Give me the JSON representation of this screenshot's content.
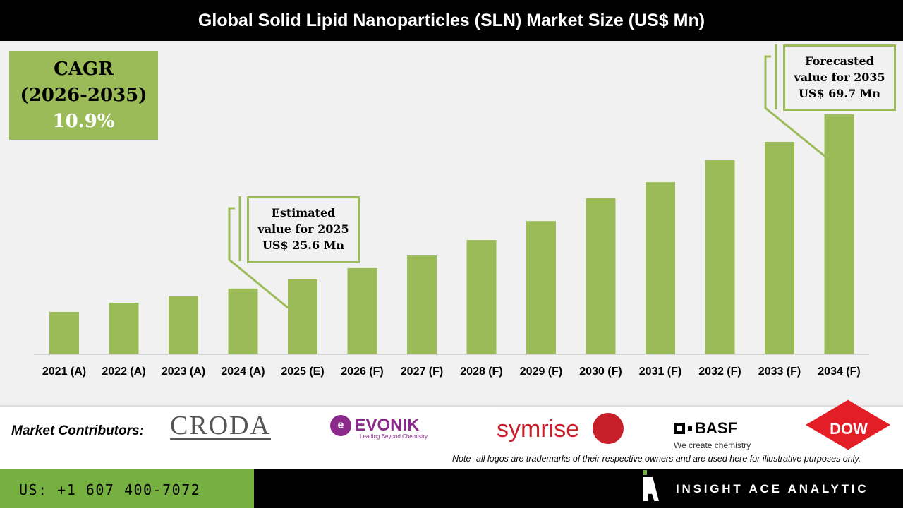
{
  "title": "Global Solid Lipid Nanoparticles (SLN) Market Size (US$ Mn)",
  "cagr": {
    "label": "CAGR",
    "period": "(2026-2035)",
    "value": "10.9%"
  },
  "callout_estimated": {
    "line1": "Estimated",
    "line2": "value for 2025",
    "line3": "US$ 25.6 Mn"
  },
  "callout_forecast": {
    "line1": "Forecasted",
    "line2": "value for 2035",
    "line3": "US$ 69.7 Mn"
  },
  "chart_data": {
    "type": "bar",
    "title": "Global Solid Lipid Nanoparticles (SLN) Market Size (US$ Mn)",
    "categories": [
      "2021 (A)",
      "2022 (A)",
      "2023 (A)",
      "2024 (A)",
      "2025 (E)",
      "2026 (F)",
      "2027 (F)",
      "2028 (F)",
      "2029 (F)",
      "2030 (F)",
      "2031 (F)",
      "2032 (F)",
      "2033 (F)",
      "2034 (F)"
    ],
    "values": [
      14.5,
      17.6,
      19.8,
      22.5,
      25.6,
      29.5,
      33.8,
      39.1,
      45.6,
      53.4,
      58.9,
      66.4,
      72.7,
      82.1
    ],
    "ylim": [
      0,
      85
    ],
    "grid": false,
    "bar_color": "#9bbb59"
  },
  "contributors": {
    "label": "Market Contributors:",
    "logos": [
      "CRODA",
      "EVONIK",
      "Leading Beyond Chemistry",
      "symrise",
      "BASF",
      "We create chemistry",
      "DOW"
    ]
  },
  "note": "Note- all logos are trademarks of their respective owners and are used here for illustrative purposes only.",
  "footer": {
    "phone": "US: +1 607 400-7072",
    "brand": "INSIGHT ACE ANALYTIC"
  }
}
